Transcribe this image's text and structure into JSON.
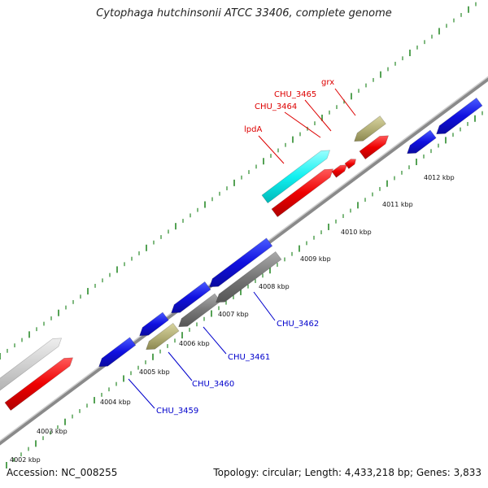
{
  "title": "Cytophaga hutchinsonii ATCC 33406, complete genome",
  "footer": {
    "accession": "Accession: NC_008255",
    "summary": "Topology: circular; Length: 4,433,218 bp; Genes: 3,833"
  },
  "colors": {
    "forward_gene": "#ff0000",
    "reverse_gene": "#0000ee",
    "highlight_gene": "#00f0f0",
    "gray_gene": "#888888",
    "olive_gene": "#b4b078",
    "backbone": "#999999",
    "tick": "#2a8a2a",
    "label_forward": "#dd0000",
    "label_reverse": "#0000cc"
  },
  "kbp_labels": [
    "4002 kbp",
    "4003 kbp",
    "4004 kbp",
    "4005 kbp",
    "4006 kbp",
    "4007 kbp",
    "4008 kbp",
    "4009 kbp",
    "4010 kbp",
    "4011 kbp",
    "4012 kbp"
  ],
  "gene_labels": {
    "forward": [
      "grx",
      "CHU_3465",
      "CHU_3464",
      "lpdA"
    ],
    "reverse": [
      "CHU_3459",
      "CHU_3460",
      "CHU_3461",
      "CHU_3462"
    ]
  }
}
